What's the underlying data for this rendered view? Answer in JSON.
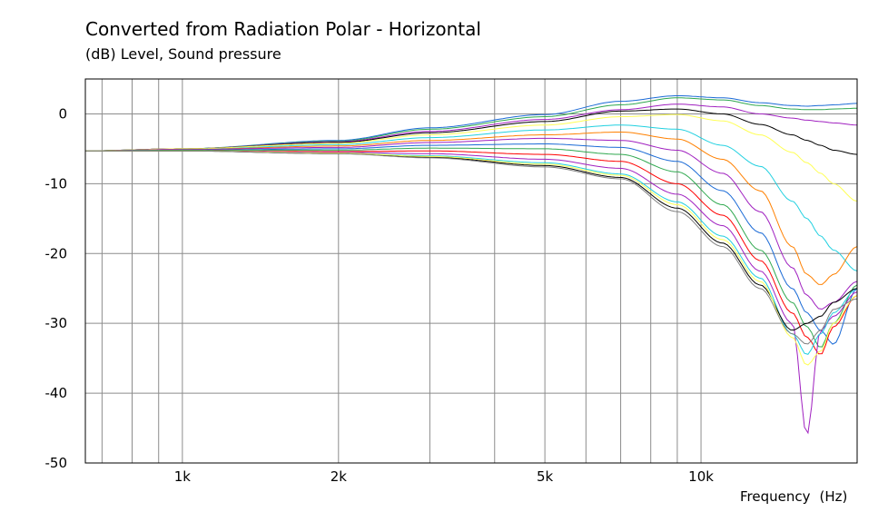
{
  "chart_data": {
    "type": "line",
    "title": "Converted from Radiation Polar - Horizontal",
    "ylabel_unit": "(dB)",
    "ylabel": "Level, Sound pressure",
    "xlabel": "Frequency",
    "xlabel_unit": "(Hz)",
    "xscale": "log",
    "xlim": [
      650,
      20000
    ],
    "ylim": [
      -50,
      5
    ],
    "grid": true,
    "y_ticks": [
      0,
      -10,
      -20,
      -30,
      -40,
      -50
    ],
    "y_tick_labels": [
      "0",
      "-10",
      "-20",
      "-30",
      "-40",
      "-50"
    ],
    "x_ticks": [
      1000,
      2000,
      5000,
      10000
    ],
    "x_tick_labels": [
      "1k",
      "2k",
      "5k",
      "10k"
    ],
    "x_minor_gridlines": [
      700,
      800,
      900,
      1000,
      2000,
      3000,
      4000,
      5000,
      6000,
      7000,
      8000,
      9000,
      10000,
      20000
    ],
    "x": [
      650,
      1000,
      2000,
      3000,
      5000,
      7000,
      9000,
      11000,
      13000,
      15000,
      16000,
      17000,
      18000,
      20000
    ],
    "series": [
      {
        "color": "#1a6ad6",
        "values": [
          -5.3,
          -5.0,
          -3.8,
          -2.0,
          -0.1,
          1.8,
          2.6,
          2.3,
          1.6,
          1.2,
          1.1,
          1.2,
          1.3,
          1.5
        ]
      },
      {
        "color": "#2fa84f",
        "values": [
          -5.3,
          -5.0,
          -3.9,
          -2.2,
          -0.4,
          1.3,
          2.3,
          2.0,
          1.2,
          0.7,
          0.6,
          0.6,
          0.7,
          0.8
        ]
      },
      {
        "color": "#a020c0",
        "values": [
          -5.3,
          -5.0,
          -4.0,
          -2.5,
          -0.8,
          0.6,
          1.4,
          1.0,
          0.0,
          -0.6,
          -0.9,
          -1.1,
          -1.3,
          -1.6
        ]
      },
      {
        "color": "#000000",
        "values": [
          -5.3,
          -5.0,
          -4.1,
          -2.7,
          -1.1,
          0.4,
          0.7,
          0.0,
          -1.5,
          -3.0,
          -3.8,
          -4.5,
          -5.2,
          -5.8
        ]
      },
      {
        "color": "#ffff55",
        "values": [
          -5.3,
          -5.0,
          -4.2,
          -3.0,
          -1.6,
          -0.4,
          -0.1,
          -1.0,
          -3.0,
          -5.5,
          -7.0,
          -8.5,
          -10.0,
          -12.5
        ]
      },
      {
        "color": "#20d0e0",
        "values": [
          -5.3,
          -5.1,
          -4.4,
          -3.4,
          -2.3,
          -1.6,
          -2.2,
          -4.5,
          -7.5,
          -12.5,
          -15.0,
          -17.5,
          -19.5,
          -22.5
        ]
      },
      {
        "color": "#ff8000",
        "values": [
          -5.3,
          -5.1,
          -4.6,
          -3.8,
          -3.0,
          -2.6,
          -3.6,
          -6.5,
          -11.0,
          -19.0,
          -23.0,
          -24.5,
          -23.0,
          -19.0
        ]
      },
      {
        "color": "#a020c0",
        "values": [
          -5.3,
          -5.1,
          -4.8,
          -4.1,
          -3.5,
          -3.8,
          -5.2,
          -8.5,
          -14.0,
          -22.0,
          -26.0,
          -28.0,
          -27.0,
          -24.0
        ]
      },
      {
        "color": "#1a6ad6",
        "values": [
          -5.3,
          -5.2,
          -5.0,
          -4.5,
          -4.3,
          -4.8,
          -6.8,
          -11.0,
          -17.0,
          -25.0,
          -28.5,
          -31.0,
          -33.0,
          -25.0
        ]
      },
      {
        "color": "#2fa84f",
        "values": [
          -5.3,
          -5.2,
          -5.2,
          -4.9,
          -5.0,
          -5.8,
          -8.3,
          -13.0,
          -19.5,
          -27.0,
          -30.5,
          -33.5,
          -30.0,
          -24.5
        ]
      },
      {
        "color": "#ff0000",
        "values": [
          -5.3,
          -5.3,
          -5.4,
          -5.3,
          -5.8,
          -6.8,
          -10.0,
          -14.5,
          -21.0,
          -28.5,
          -32.0,
          -34.5,
          -30.5,
          -26.0
        ]
      },
      {
        "color": "#a020c0",
        "values": [
          -5.3,
          -5.3,
          -5.5,
          -5.7,
          -6.5,
          -7.8,
          -11.5,
          -16.0,
          -22.5,
          -30.0,
          -46.0,
          -31.0,
          -29.0,
          -25.5
        ]
      },
      {
        "color": "#20d0e0",
        "values": [
          -5.3,
          -5.3,
          -5.6,
          -6.0,
          -7.0,
          -8.6,
          -12.6,
          -17.5,
          -23.5,
          -31.5,
          -34.5,
          -31.5,
          -28.5,
          -25.0
        ]
      },
      {
        "color": "#000000",
        "values": [
          -5.3,
          -5.3,
          -5.7,
          -6.2,
          -7.4,
          -9.1,
          -13.5,
          -18.5,
          -24.5,
          -31.0,
          -30.0,
          -29.0,
          -27.0,
          -25.0
        ]
      },
      {
        "color": "#ffff55",
        "values": [
          -5.3,
          -5.3,
          -5.6,
          -6.1,
          -7.2,
          -8.8,
          -13.0,
          -18.0,
          -24.0,
          -32.0,
          -36.0,
          -34.0,
          -30.0,
          -26.0
        ]
      },
      {
        "color": "#808080",
        "values": [
          -5.3,
          -5.3,
          -5.7,
          -6.3,
          -7.6,
          -9.3,
          -14.0,
          -19.0,
          -25.0,
          -31.5,
          -33.0,
          -31.0,
          -28.0,
          -26.5
        ]
      }
    ]
  }
}
